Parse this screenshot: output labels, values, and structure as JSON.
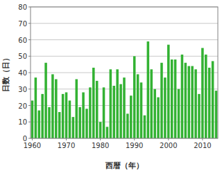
{
  "chart_data": {
    "type": "bar",
    "x_label": "西暦（年）",
    "y_label": "日数（日）",
    "x": [
      1960,
      1961,
      1962,
      1963,
      1964,
      1965,
      1966,
      1967,
      1968,
      1969,
      1970,
      1971,
      1972,
      1973,
      1974,
      1975,
      1976,
      1977,
      1978,
      1979,
      1980,
      1981,
      1982,
      1983,
      1984,
      1985,
      1986,
      1987,
      1988,
      1989,
      1990,
      1991,
      1992,
      1993,
      1994,
      1995,
      1996,
      1997,
      1998,
      1999,
      2000,
      2001,
      2002,
      2003,
      2004,
      2005,
      2006,
      2007,
      2008,
      2009,
      2010,
      2011,
      2012,
      2013,
      2014
    ],
    "values": [
      23,
      37,
      17,
      27,
      46,
      19,
      39,
      36,
      16,
      27,
      28,
      23,
      13,
      36,
      19,
      28,
      18,
      31,
      43,
      35,
      10,
      31,
      7,
      42,
      32,
      42,
      33,
      37,
      15,
      26,
      50,
      39,
      34,
      14,
      59,
      42,
      30,
      25,
      46,
      37,
      57,
      48,
      48,
      30,
      51,
      46,
      44,
      44,
      42,
      27,
      55,
      51,
      43,
      47,
      29
    ],
    "color": "#33b233",
    "xlim": [
      1959.5,
      2014.5
    ],
    "xticks": [
      1960,
      1970,
      1980,
      1990,
      2000,
      2010
    ],
    "ylim": [
      0,
      80
    ],
    "yticks": [
      0,
      10,
      20,
      30,
      40,
      50,
      60,
      70,
      80
    ],
    "grid": true
  }
}
